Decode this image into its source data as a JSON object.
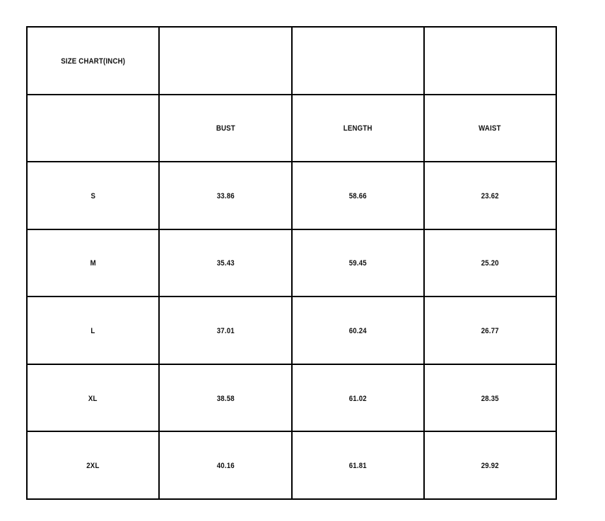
{
  "page": {
    "background_color": "#ffffff",
    "border_color": "#000000",
    "text_color": "#111111"
  },
  "size_chart": {
    "title": "SIZE CHART(INCH)",
    "unit": "INCH",
    "column_headers": {
      "bust": "BUST",
      "length": "LENGTH",
      "waist": "WAIST"
    },
    "rows": [
      {
        "size": "S",
        "bust": "33.86",
        "length": "58.66",
        "waist": "23.62"
      },
      {
        "size": "M",
        "bust": "35.43",
        "length": "59.45",
        "waist": "25.20"
      },
      {
        "size": "L",
        "bust": "37.01",
        "length": "60.24",
        "waist": "26.77"
      },
      {
        "size": "XL",
        "bust": "38.58",
        "length": "61.02",
        "waist": "28.35"
      },
      {
        "size": "2XL",
        "bust": "40.16",
        "length": "61.81",
        "waist": "29.92"
      }
    ]
  }
}
